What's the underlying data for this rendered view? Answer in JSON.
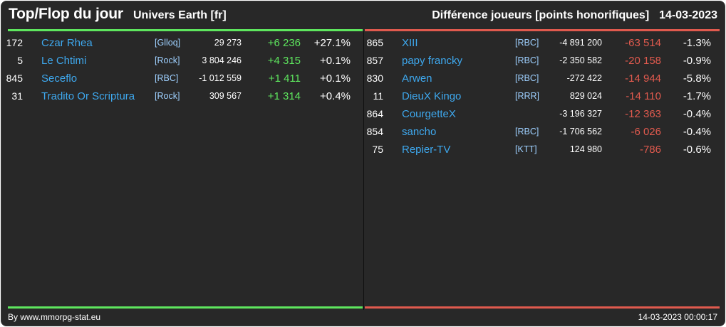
{
  "header": {
    "title": "Top/Flop du jour",
    "universe": "Univers Earth [fr]",
    "metric": "Différence joueurs [points honorifiques]",
    "date": "14-03-2023"
  },
  "colors": {
    "background": "#282828",
    "top_accent": "#5ee65e",
    "flop_accent": "#e05a4e",
    "name_link": "#3ea8ee",
    "alliance": "#9ed0ff"
  },
  "top": [
    {
      "rank": "172",
      "name": "Czar Rhea",
      "alliance": "[Glloq]",
      "points": "29 273",
      "diff": "+6 236",
      "pct": "+27.1%"
    },
    {
      "rank": "5",
      "name": "Le Chtimi",
      "alliance": "[Rock]",
      "points": "3 804 246",
      "diff": "+4 315",
      "pct": "+0.1%"
    },
    {
      "rank": "845",
      "name": "Seceflo",
      "alliance": "[RBC]",
      "points": "-1 012 559",
      "diff": "+1 411",
      "pct": "+0.1%"
    },
    {
      "rank": "31",
      "name": "Tradito Or Scriptura",
      "alliance": "[Rock]",
      "points": "309 567",
      "diff": "+1 314",
      "pct": "+0.4%"
    }
  ],
  "flop": [
    {
      "rank": "865",
      "name": "XIII",
      "alliance": "[RBC]",
      "points": "-4 891 200",
      "diff": "-63 514",
      "pct": "-1.3%"
    },
    {
      "rank": "857",
      "name": "papy francky",
      "alliance": "[RBC]",
      "points": "-2 350 582",
      "diff": "-20 158",
      "pct": "-0.9%"
    },
    {
      "rank": "830",
      "name": "Arwen",
      "alliance": "[RBC]",
      "points": "-272 422",
      "diff": "-14 944",
      "pct": "-5.8%"
    },
    {
      "rank": "11",
      "name": "DieuX Kingo",
      "alliance": "[RRR]",
      "points": "829 024",
      "diff": "-14 110",
      "pct": "-1.7%"
    },
    {
      "rank": "864",
      "name": "CourgetteX",
      "alliance": "",
      "points": "-3 196 327",
      "diff": "-12 363",
      "pct": "-0.4%"
    },
    {
      "rank": "854",
      "name": "sancho",
      "alliance": "[RBC]",
      "points": "-1 706 562",
      "diff": "-6 026",
      "pct": "-0.4%"
    },
    {
      "rank": "75",
      "name": "Repier-TV",
      "alliance": "[KTT]",
      "points": "124 980",
      "diff": "-786",
      "pct": "-0.6%"
    }
  ],
  "footer": {
    "credit": "By www.mmorpg-stat.eu",
    "timestamp": "14-03-2023 00:00:17"
  }
}
